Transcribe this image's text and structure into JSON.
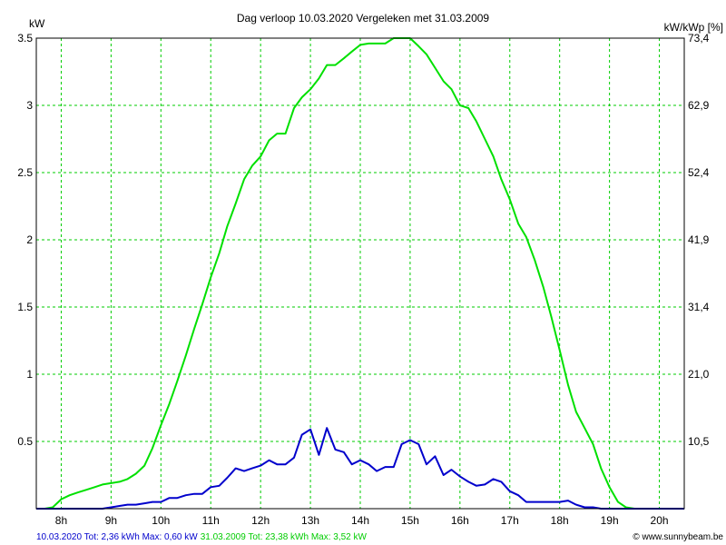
{
  "title": "Dag  verloop 10.03.2020   Vergeleken met 31.03.2009",
  "left_unit": "kW",
  "right_unit": "kW/kWp [%]",
  "footer": {
    "blue_text": "10.03.2020 Tot: 2,36 kWh Max: 0,60 kW",
    "green_text": "31.03.2009 Tot: 23,38 kWh Max: 3,52 kW",
    "credit": "© www.sunnybeam.be"
  },
  "colors": {
    "background": "#ffffff",
    "grid": "#00cc00",
    "frame": "#000000",
    "blue_series": "#0000cc",
    "green_series": "#00e000",
    "footer_blue": "#0000cc",
    "footer_green": "#00cc00"
  },
  "chart_data": {
    "type": "line",
    "title": "Dag  verloop 10.03.2020   Vergeleken met 31.03.2009",
    "ylabel": "kW",
    "y2label": "kW/kWp [%]",
    "xlim": [
      7.5,
      20.5
    ],
    "ylim": [
      0,
      3.5
    ],
    "grid": true,
    "x_ticks": [
      8,
      9,
      10,
      11,
      12,
      13,
      14,
      15,
      16,
      17,
      18,
      19,
      20
    ],
    "x_tick_labels": [
      "8h",
      "9h",
      "10h",
      "11h",
      "12h",
      "13h",
      "14h",
      "15h",
      "16h",
      "17h",
      "18h",
      "19h",
      "20h"
    ],
    "y_ticks": [
      0.5,
      1,
      1.5,
      2,
      2.5,
      3,
      3.5
    ],
    "y_tick_labels": [
      "0.5",
      "1",
      "1.5",
      "2",
      "2.5",
      "3",
      "3.5"
    ],
    "y2_tick_labels": [
      "10,5",
      "21,0",
      "31,4",
      "41,9",
      "52,4",
      "62,9",
      "73,4"
    ],
    "series": [
      {
        "name": "31.03.2009",
        "color": "#00e000",
        "x": [
          7.5,
          7.67,
          7.83,
          8.0,
          8.17,
          8.33,
          8.5,
          8.67,
          8.83,
          9.0,
          9.17,
          9.33,
          9.5,
          9.67,
          9.83,
          10.0,
          10.17,
          10.33,
          10.5,
          10.67,
          10.83,
          11.0,
          11.17,
          11.33,
          11.5,
          11.67,
          11.83,
          12.0,
          12.17,
          12.33,
          12.5,
          12.67,
          12.83,
          13.0,
          13.17,
          13.33,
          13.5,
          13.67,
          13.83,
          14.0,
          14.17,
          14.33,
          14.5,
          14.67,
          14.83,
          15.0,
          15.17,
          15.33,
          15.5,
          15.67,
          15.83,
          16.0,
          16.17,
          16.33,
          16.5,
          16.67,
          16.83,
          17.0,
          17.17,
          17.33,
          17.5,
          17.67,
          17.83,
          18.0,
          18.17,
          18.33,
          18.5,
          18.67,
          18.83,
          19.0,
          19.17,
          19.33,
          19.5,
          19.67,
          19.83,
          20.0,
          20.17
        ],
        "values": [
          0.0,
          0.0,
          0.01,
          0.07,
          0.1,
          0.12,
          0.14,
          0.16,
          0.18,
          0.19,
          0.2,
          0.22,
          0.26,
          0.32,
          0.45,
          0.62,
          0.78,
          0.95,
          1.14,
          1.34,
          1.52,
          1.72,
          1.9,
          2.1,
          2.27,
          2.45,
          2.55,
          2.62,
          2.74,
          2.79,
          2.79,
          2.98,
          3.06,
          3.12,
          3.2,
          3.3,
          3.3,
          3.35,
          3.4,
          3.45,
          3.46,
          3.46,
          3.46,
          3.5,
          3.5,
          3.5,
          3.44,
          3.38,
          3.28,
          3.18,
          3.12,
          3.0,
          2.98,
          2.88,
          2.75,
          2.62,
          2.45,
          2.3,
          2.12,
          2.02,
          1.85,
          1.65,
          1.43,
          1.18,
          0.92,
          0.72,
          0.6,
          0.48,
          0.3,
          0.16,
          0.05,
          0.01,
          0.0,
          0.0,
          0.0,
          0.0,
          0.0
        ],
        "max_label": "3,52 kW"
      },
      {
        "name": "10.03.2020",
        "color": "#0000cc",
        "x": [
          7.5,
          8.0,
          8.5,
          8.83,
          9.0,
          9.17,
          9.33,
          9.5,
          9.67,
          9.83,
          10.0,
          10.17,
          10.33,
          10.5,
          10.67,
          10.83,
          11.0,
          11.17,
          11.33,
          11.5,
          11.67,
          11.83,
          12.0,
          12.17,
          12.33,
          12.5,
          12.67,
          12.83,
          13.0,
          13.17,
          13.33,
          13.5,
          13.67,
          13.83,
          14.0,
          14.17,
          14.33,
          14.5,
          14.67,
          14.83,
          15.0,
          15.17,
          15.33,
          15.5,
          15.67,
          15.83,
          16.0,
          16.17,
          16.33,
          16.5,
          16.67,
          16.83,
          17.0,
          17.17,
          17.33,
          17.5,
          17.67,
          17.83,
          18.0,
          18.17,
          18.33,
          18.5,
          18.67,
          18.83,
          19.0,
          19.17,
          19.33,
          20.0,
          20.5
        ],
        "values": [
          0.0,
          0.0,
          0.0,
          0.0,
          0.01,
          0.02,
          0.03,
          0.03,
          0.04,
          0.05,
          0.05,
          0.08,
          0.08,
          0.1,
          0.11,
          0.11,
          0.16,
          0.17,
          0.23,
          0.3,
          0.28,
          0.3,
          0.32,
          0.36,
          0.33,
          0.33,
          0.38,
          0.55,
          0.59,
          0.4,
          0.6,
          0.44,
          0.42,
          0.33,
          0.36,
          0.33,
          0.28,
          0.31,
          0.31,
          0.48,
          0.51,
          0.48,
          0.33,
          0.39,
          0.25,
          0.29,
          0.24,
          0.2,
          0.17,
          0.18,
          0.22,
          0.2,
          0.13,
          0.1,
          0.05,
          0.05,
          0.05,
          0.05,
          0.05,
          0.06,
          0.03,
          0.01,
          0.01,
          0.0,
          0.0,
          0.0,
          0.0,
          0.0,
          0.0
        ],
        "max_label": "0,60 kW"
      }
    ]
  }
}
